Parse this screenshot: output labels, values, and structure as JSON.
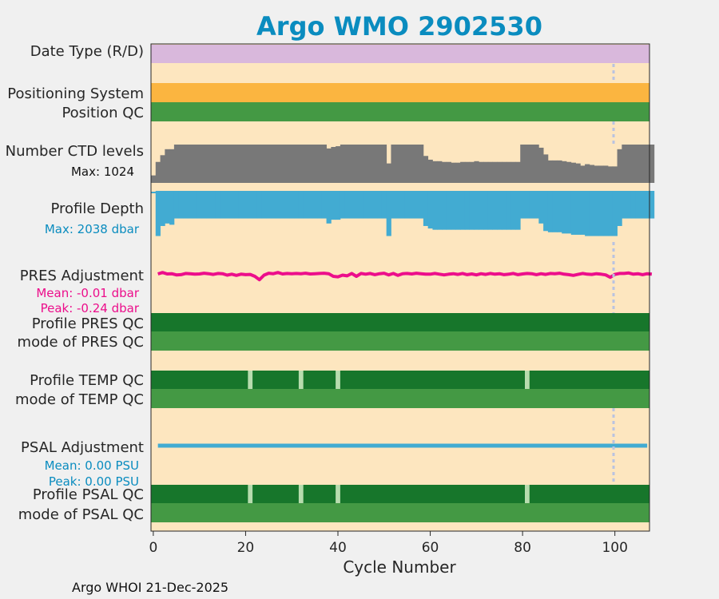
{
  "title": "Argo WMO 2902530",
  "footer": "Argo WHOI 21-Dec-2025",
  "colors": {
    "title": "#0a8cbf",
    "background": "#f0f0f0",
    "plot_bg": "#fde6bf",
    "date_type": "#d9b8dc",
    "positioning": "#fbb540",
    "qc_mid": "#449944",
    "qc_dark": "#17762b",
    "qc_gap": "#b7dcae",
    "ctd": "#787878",
    "depth": "#42abd2",
    "pres_adj": "#ec0e8b",
    "psal_adj": "#42abd2",
    "vline": "#b9c3e0"
  },
  "rows": {
    "date_type": "Date Type (R/D)",
    "positioning": "Positioning System",
    "position_qc": "Position QC",
    "ctd_levels": "Number CTD levels",
    "ctd_max": "Max: 1024",
    "profile_depth": "Profile Depth",
    "depth_max": "Max: 2038 dbar",
    "pres_adj": "PRES Adjustment",
    "pres_mean": "Mean: -0.01 dbar",
    "pres_peak": "Peak: -0.24 dbar",
    "profile_pres_qc": "Profile PRES QC",
    "mode_pres_qc": "mode of PRES QC",
    "profile_temp_qc": "Profile TEMP QC",
    "mode_temp_qc": "mode of TEMP QC",
    "psal_adj": "PSAL Adjustment",
    "psal_mean": "Mean: 0.00 PSU",
    "psal_peak": "Peak: 0.00 PSU",
    "profile_psal_qc": "Profile PSAL QC",
    "mode_psal_qc": "mode of PSAL QC"
  },
  "chart_data": {
    "type": "bar",
    "title": "Argo WMO 2902530",
    "xlabel": "Cycle Number",
    "xlim": [
      -0.5,
      107.5
    ],
    "xticks": [
      0,
      20,
      40,
      60,
      80,
      100
    ],
    "vline_x": 100,
    "cycles_start": 0,
    "ctd_levels": [
      200,
      560,
      740,
      900,
      900,
      1024,
      1024,
      1024,
      1024,
      1024,
      1024,
      1024,
      1024,
      1024,
      1024,
      1024,
      1024,
      1024,
      1024,
      1024,
      1024,
      1024,
      1024,
      1024,
      1024,
      1024,
      1024,
      1024,
      1024,
      1024,
      1024,
      1024,
      1024,
      1024,
      1024,
      1024,
      1024,
      1024,
      920,
      960,
      980,
      1024,
      1024,
      1024,
      1024,
      1024,
      1024,
      1024,
      1024,
      1024,
      1024,
      520,
      1024,
      1024,
      1024,
      1024,
      1024,
      1024,
      1024,
      720,
      620,
      580,
      580,
      560,
      560,
      540,
      540,
      560,
      560,
      560,
      580,
      560,
      560,
      560,
      560,
      560,
      560,
      560,
      560,
      560,
      1024,
      1024,
      1024,
      1024,
      940,
      760,
      600,
      600,
      600,
      580,
      560,
      540,
      520,
      460,
      500,
      480,
      460,
      460,
      460,
      440,
      440,
      900,
      1024,
      1024,
      1024,
      1024,
      1024,
      1024,
      1024
    ],
    "profile_depth_dbar": [
      2038,
      1800,
      1400,
      1300,
      1350,
      1100,
      1100,
      1100,
      1100,
      1100,
      1100,
      1100,
      1100,
      1100,
      1100,
      1100,
      1100,
      1100,
      1100,
      1100,
      1100,
      1100,
      1100,
      1100,
      1100,
      1100,
      1100,
      1100,
      1100,
      1100,
      1100,
      1100,
      1100,
      1100,
      1100,
      1100,
      1100,
      1100,
      1300,
      1150,
      1150,
      1100,
      1100,
      1100,
      1100,
      1100,
      1100,
      1100,
      1100,
      1100,
      1100,
      1800,
      1100,
      1100,
      1100,
      1100,
      1100,
      1100,
      1100,
      1400,
      1500,
      1550,
      1550,
      1550,
      1550,
      1550,
      1550,
      1550,
      1550,
      1550,
      1550,
      1550,
      1550,
      1550,
      1550,
      1550,
      1550,
      1550,
      1550,
      1550,
      1100,
      1100,
      1100,
      1100,
      1300,
      1600,
      1650,
      1650,
      1650,
      1700,
      1700,
      1750,
      1750,
      1750,
      1800,
      1800,
      1800,
      1800,
      1800,
      1800,
      1800,
      1400,
      1100,
      1100,
      1100,
      1100,
      1100,
      1100,
      1100
    ],
    "pres_adjustment_dbar": [
      0,
      0.06,
      0,
      0.01,
      -0.04,
      -0.03,
      0.02,
      0.01,
      -0.01,
      0,
      0.03,
      0.01,
      -0.02,
      0.02,
      0.01,
      -0.05,
      -0.01,
      -0.06,
      -0.01,
      -0.03,
      -0.02,
      -0.1,
      -0.24,
      -0.05,
      0.03,
      0.01,
      0.06,
      0,
      0.02,
      0.01,
      0.02,
      0.01,
      0.03,
      0,
      0.01,
      0.02,
      0.03,
      0.01,
      -0.1,
      -0.12,
      -0.05,
      -0.08,
      0.02,
      -0.1,
      0.02,
      -0.01,
      0.02,
      -0.03,
      0.01,
      0.03,
      -0.04,
      0.02,
      -0.06,
      0.01,
      0.02,
      0,
      0.03,
      0.01,
      -0.01,
      -0.01,
      0.02,
      -0.01,
      -0.04,
      -0.01,
      0.01,
      -0.02,
      0.02,
      -0.03,
      0,
      -0.04,
      0.01,
      -0.02,
      0.02,
      -0.01,
      0.01,
      -0.03,
      -0.01,
      0.02,
      -0.03,
      0,
      0.02,
      0.01,
      -0.03,
      0.01,
      -0.02,
      0.02,
      0.01,
      0.03,
      -0.01,
      -0.03,
      -0.06,
      -0.02,
      0.02,
      -0.01,
      -0.02,
      0.01,
      -0.01,
      -0.04,
      -0.14,
      -0.02,
      0.02,
      0.02,
      0.04,
      -0.01,
      0.01,
      -0.03,
      0.01,
      -0.01
    ],
    "psal_adjustment_psu_xrange": [
      1,
      107
    ],
    "qc_gap_cycles": [
      21,
      32,
      40,
      81
    ]
  }
}
